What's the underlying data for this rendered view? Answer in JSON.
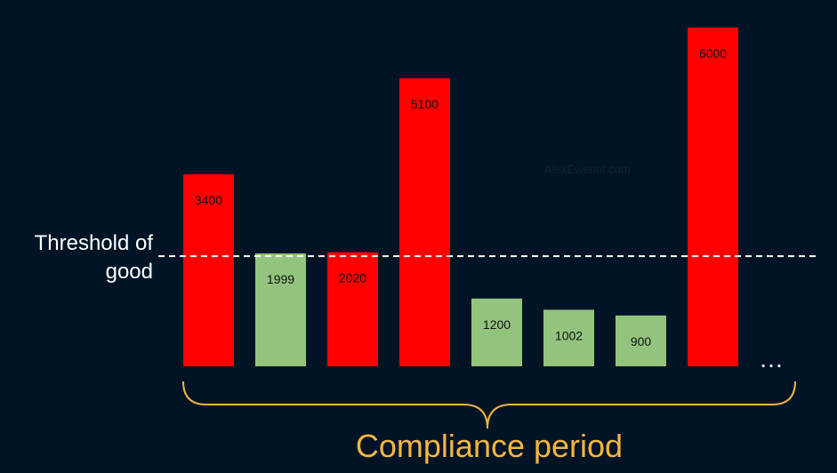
{
  "chart_data": {
    "type": "bar",
    "categories": [
      "",
      "",
      "",
      "",
      "",
      "",
      "",
      ""
    ],
    "values": [
      3400,
      1999,
      2020,
      5100,
      1200,
      1002,
      900,
      6000
    ],
    "labels": [
      "3400",
      "1999",
      "2020",
      "5100",
      "1200",
      "1002",
      "900",
      "6000"
    ],
    "bar_colors": [
      "#ff0000",
      "#93c47d",
      "#ff0000",
      "#ff0000",
      "#93c47d",
      "#93c47d",
      "#93c47d",
      "#ff0000"
    ],
    "ylim": [
      0,
      6000
    ],
    "threshold": {
      "value": 1950,
      "label_line1": "Threshold of",
      "label_line2": "good",
      "color": "#ffffff",
      "style": "dashed"
    },
    "continuation": "…",
    "brace": {
      "label": "Compliance period",
      "color": "#f5b642"
    },
    "grid": false,
    "legend": "none"
  },
  "watermark": "AlexEwerlof.com",
  "colors": {
    "background": "#001426",
    "bad": "#ff0000",
    "good": "#93c47d",
    "accent": "#f5b642"
  }
}
